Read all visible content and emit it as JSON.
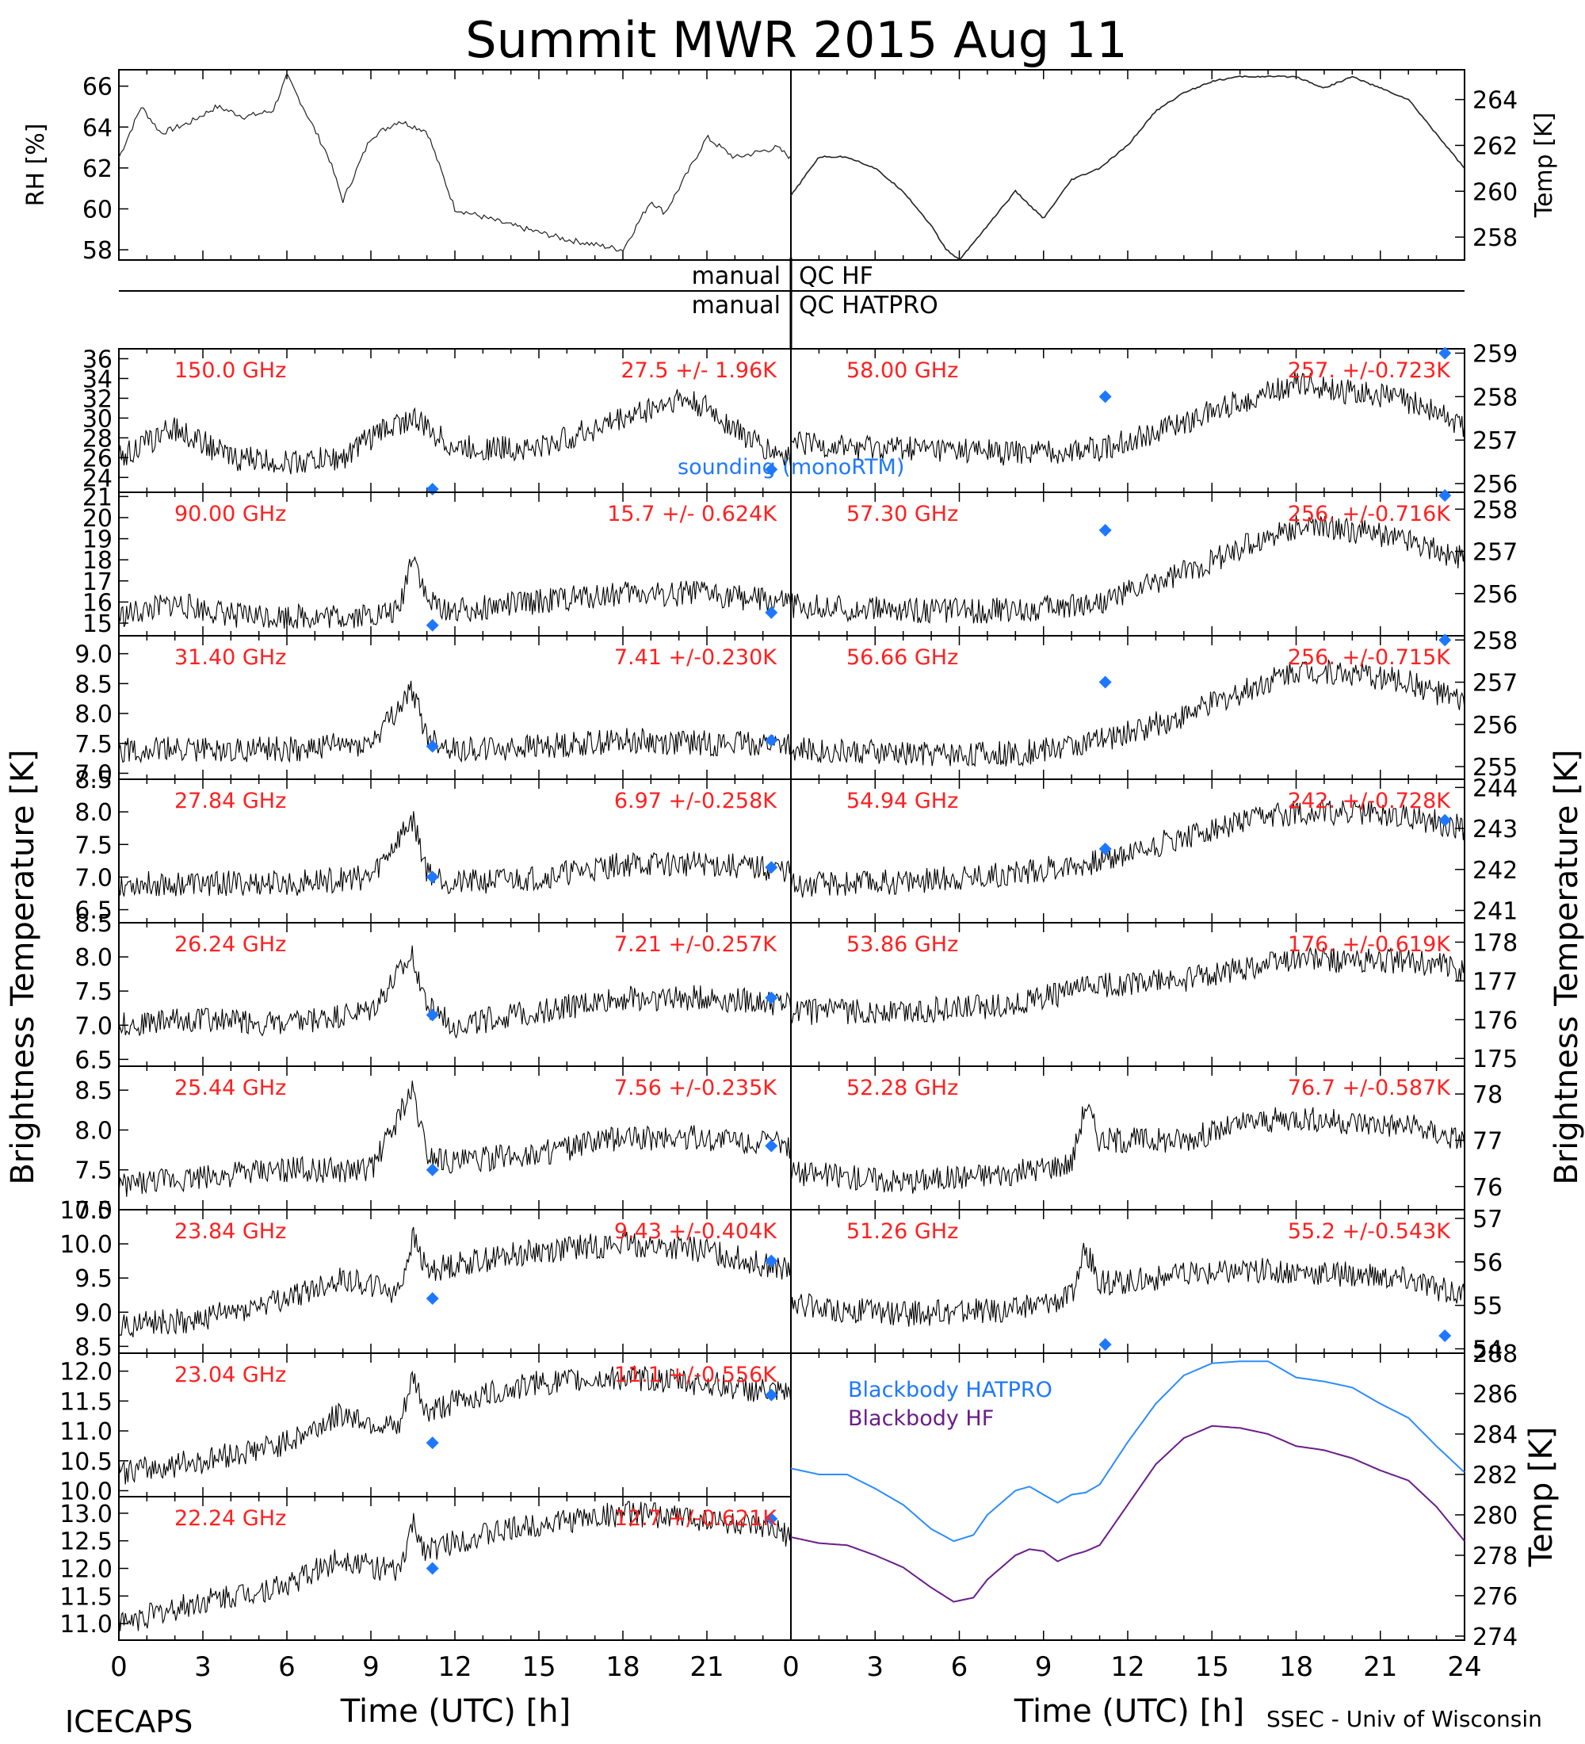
{
  "title": "Summit MWR 2015 Aug 11",
  "qc_labels": {
    "hf_left": "manual",
    "hf_right": "QC HF",
    "hatpro_left": "manual",
    "hatpro_right": "QC HATPRO"
  },
  "left_axis_label": "Brightness Temperature [K]",
  "right_axis_label": "Brightness Temperature [K]",
  "xlabel": "Time (UTC) [h]",
  "x_ticks": [
    "0",
    "3",
    "6",
    "9",
    "12",
    "15",
    "18",
    "21",
    "24"
  ],
  "footer": {
    "left": "ICECAPS",
    "right": "SSEC - Univ of Wisconsin"
  },
  "legend": {
    "sounding": "sounding (monoRTM)",
    "bb_hatpro": "Blackbody HATPRO",
    "bb_hf": "Blackbody HF"
  },
  "colors": {
    "stat": "#ff2020",
    "sounding": "#1e78ff",
    "bb_hatpro": "#2c8cff",
    "bb_hf": "#6a1e8a"
  },
  "chart_data": [
    {
      "type": "line",
      "panel": "rh",
      "ylabel": "RH [%]",
      "ylim": [
        57.5,
        66.8
      ],
      "yticks": [
        58,
        60,
        62,
        64,
        66
      ],
      "x": [
        0,
        0.8,
        1.5,
        2.5,
        3.5,
        4.5,
        5.5,
        6,
        6.5,
        7.5,
        8,
        9,
        10,
        11,
        12,
        14,
        16,
        18,
        19,
        19.5,
        20,
        21,
        22,
        23.5,
        24
      ],
      "y": [
        62.5,
        65,
        63.7,
        64.2,
        65,
        64.5,
        64.8,
        66.5,
        65.2,
        62.5,
        60.4,
        63.5,
        64.3,
        63.8,
        60,
        59.2,
        58.5,
        58,
        60.4,
        59.8,
        61,
        63.5,
        62.5,
        63,
        62.5
      ]
    },
    {
      "type": "line",
      "panel": "temp",
      "ylabel": "Temp [K]",
      "ylim": [
        257,
        265.3
      ],
      "yticks": [
        258,
        260,
        262,
        264
      ],
      "x": [
        0,
        1,
        2,
        3,
        4,
        5,
        5.5,
        6,
        7,
        8,
        9,
        10,
        11,
        12,
        13,
        14,
        15,
        16,
        17,
        18,
        19,
        20,
        21,
        22,
        23,
        24
      ],
      "y": [
        259.8,
        261.5,
        261.5,
        261,
        260,
        258.5,
        257.5,
        257,
        258.5,
        260,
        258.8,
        260.5,
        261,
        262,
        263.5,
        264.3,
        264.8,
        265,
        265,
        265,
        264.5,
        265,
        264.5,
        264,
        262.5,
        261
      ]
    },
    {
      "type": "scatter",
      "panel": "L1",
      "freq": "150.0 GHz",
      "stat": "27.5 +/- 1.96K",
      "ylim": [
        22.5,
        37
      ],
      "yticks": [
        22,
        24,
        26,
        28,
        30,
        32,
        34,
        36
      ],
      "sounding_x": [
        11.2,
        23.3
      ],
      "sounding_y": [
        22.5,
        24.8
      ],
      "sounding_label": true,
      "x": [
        0,
        2,
        4,
        6,
        8,
        9.5,
        10.5,
        12,
        15,
        18,
        20,
        21,
        22,
        23,
        24
      ],
      "y": [
        26,
        29,
        26,
        25.5,
        26,
        29,
        30,
        27,
        27,
        30,
        32,
        31,
        29,
        27,
        26
      ]
    },
    {
      "type": "scatter",
      "panel": "L2",
      "freq": "90.00 GHz",
      "stat": "15.7 +/- 0.624K",
      "ylim": [
        14.4,
        21.2
      ],
      "yticks": [
        15,
        16,
        17,
        18,
        19,
        20,
        21
      ],
      "sounding_x": [
        11.2,
        23.3
      ],
      "sounding_y": [
        14.9,
        15.5
      ],
      "x": [
        0,
        2,
        4,
        6,
        8,
        10,
        10.5,
        11,
        12,
        15,
        18,
        21,
        24
      ],
      "y": [
        15.3,
        15.9,
        15.4,
        15.3,
        15.3,
        15.5,
        18.5,
        16,
        15.6,
        16,
        16.4,
        16.4,
        15.9
      ]
    },
    {
      "type": "scatter",
      "panel": "L3",
      "freq": "31.40 GHz",
      "stat": "7.41 +/-0.230K",
      "ylim": [
        6.9,
        9.3
      ],
      "yticks": [
        7.0,
        7.5,
        8.0,
        8.5,
        9.0
      ],
      "sounding_x": [
        11.2,
        23.3
      ],
      "sounding_y": [
        7.45,
        7.55
      ],
      "x": [
        0,
        3,
        6,
        9,
        10.5,
        11,
        12,
        15,
        18,
        21,
        24
      ],
      "y": [
        7.4,
        7.4,
        7.4,
        7.5,
        8.4,
        7.6,
        7.4,
        7.45,
        7.55,
        7.5,
        7.5
      ]
    },
    {
      "type": "scatter",
      "panel": "L4",
      "freq": "27.84 GHz",
      "stat": "6.97 +/-0.258K",
      "ylim": [
        6.3,
        8.5
      ],
      "yticks": [
        6.5,
        7.0,
        7.5,
        8.0,
        8.5
      ],
      "sounding_x": [
        11.2,
        23.3
      ],
      "sounding_y": [
        7.0,
        7.15
      ],
      "x": [
        0,
        3,
        6,
        9,
        10.5,
        11,
        12,
        15,
        18,
        21,
        24
      ],
      "y": [
        6.9,
        6.9,
        6.9,
        7.0,
        7.9,
        7.1,
        6.9,
        7.0,
        7.2,
        7.2,
        7.1
      ]
    },
    {
      "type": "scatter",
      "panel": "L5",
      "freq": "26.24 GHz",
      "stat": "7.21 +/-0.257K",
      "ylim": [
        6.4,
        8.5
      ],
      "yticks": [
        6.5,
        7.0,
        7.5,
        8.0,
        8.5
      ],
      "sounding_x": [
        11.2,
        23.3
      ],
      "sounding_y": [
        7.15,
        7.4
      ],
      "x": [
        0,
        3,
        6,
        9,
        10.5,
        11,
        12,
        15,
        18,
        21,
        24
      ],
      "y": [
        7.0,
        7.1,
        7.0,
        7.2,
        8.0,
        7.3,
        7.0,
        7.2,
        7.4,
        7.4,
        7.3
      ]
    },
    {
      "type": "scatter",
      "panel": "L6",
      "freq": "25.44 GHz",
      "stat": "7.56 +/-0.235K",
      "ylim": [
        7.0,
        8.8
      ],
      "yticks": [
        7.0,
        7.5,
        8.0,
        8.5
      ],
      "sounding_x": [
        11.2,
        23.3
      ],
      "sounding_y": [
        7.5,
        7.8
      ],
      "x": [
        0,
        3,
        6,
        9,
        10.5,
        11,
        12,
        15,
        18,
        21,
        24
      ],
      "y": [
        7.3,
        7.4,
        7.5,
        7.5,
        8.5,
        7.7,
        7.6,
        7.7,
        7.9,
        7.9,
        7.8
      ]
    },
    {
      "type": "scatter",
      "panel": "L7",
      "freq": "23.84 GHz",
      "stat": "9.43 +/-0.404K",
      "ylim": [
        8.4,
        10.5
      ],
      "yticks": [
        8.5,
        9.0,
        9.5,
        10.0,
        10.5
      ],
      "sounding_x": [
        11.2,
        23.3
      ],
      "sounding_y": [
        9.2,
        9.75
      ],
      "x": [
        0,
        3,
        6,
        8,
        10,
        10.5,
        11,
        12,
        15,
        18,
        21,
        24
      ],
      "y": [
        8.8,
        8.9,
        9.2,
        9.5,
        9.3,
        10.1,
        9.6,
        9.7,
        9.9,
        10.0,
        9.9,
        9.6
      ]
    },
    {
      "type": "scatter",
      "panel": "L8",
      "freq": "23.04 GHz",
      "stat": "11.1 +/-0.556K",
      "ylim": [
        9.9,
        12.3
      ],
      "yticks": [
        10.0,
        10.5,
        11.0,
        11.5,
        12.0
      ],
      "sounding_x": [
        11.2,
        23.3
      ],
      "sounding_y": [
        10.8,
        11.6
      ],
      "x": [
        0,
        3,
        6,
        8,
        10,
        10.5,
        11,
        12,
        15,
        18,
        21,
        24
      ],
      "y": [
        10.3,
        10.5,
        10.8,
        11.3,
        11.0,
        11.9,
        11.3,
        11.5,
        11.8,
        11.9,
        11.8,
        11.6
      ]
    },
    {
      "type": "scatter",
      "panel": "L9",
      "freq": "22.24 GHz",
      "stat": "12.7 +/-0.621K",
      "ylim": [
        10.7,
        13.3
      ],
      "yticks": [
        11.0,
        11.5,
        12.0,
        12.5,
        13.0
      ],
      "sounding_x": [
        11.2,
        23.3
      ],
      "sounding_y": [
        12.0,
        12.9
      ],
      "x": [
        0,
        3,
        6,
        8,
        10,
        10.5,
        11,
        12,
        15,
        18,
        21,
        24
      ],
      "y": [
        11.0,
        11.4,
        11.7,
        12.2,
        11.9,
        12.8,
        12.3,
        12.5,
        12.8,
        13.0,
        12.9,
        12.6
      ]
    },
    {
      "type": "scatter",
      "panel": "R1",
      "freq": "58.00 GHz",
      "stat": "257. +/-0.723K",
      "ylim": [
        255.8,
        259.1
      ],
      "yticks": [
        256,
        257,
        258,
        259
      ],
      "sounding_x": [
        11.2,
        23.3
      ],
      "sounding_y": [
        258,
        259
      ],
      "x": [
        0,
        4,
        8,
        11,
        14,
        16.5,
        18,
        20,
        22,
        24
      ],
      "y": [
        256.9,
        256.8,
        256.7,
        256.8,
        257.4,
        258,
        258.3,
        258.1,
        257.9,
        257.3
      ]
    },
    {
      "type": "scatter",
      "panel": "R2",
      "freq": "57.30 GHz",
      "stat": "256. +/-0.716K",
      "ylim": [
        255,
        258.4
      ],
      "yticks": [
        256,
        257,
        258
      ],
      "sounding_x": [
        11.2,
        23.3
      ],
      "sounding_y": [
        257.5,
        258.5
      ],
      "x": [
        0,
        4,
        8,
        11,
        14,
        16.5,
        18,
        20,
        22,
        24
      ],
      "y": [
        255.7,
        255.6,
        255.6,
        255.8,
        256.5,
        257.2,
        257.6,
        257.5,
        257.3,
        256.8
      ]
    },
    {
      "type": "scatter",
      "panel": "R3",
      "freq": "56.66 GHz",
      "stat": "256. +/-0.715K",
      "ylim": [
        254.7,
        258.1
      ],
      "yticks": [
        255,
        256,
        257,
        258
      ],
      "sounding_x": [
        11.2,
        23.3
      ],
      "sounding_y": [
        257,
        258
      ],
      "x": [
        0,
        4,
        8,
        11,
        14,
        16.5,
        18,
        20,
        22,
        24
      ],
      "y": [
        255.4,
        255.3,
        255.3,
        255.6,
        256.2,
        256.9,
        257.3,
        257.2,
        257,
        256.5
      ]
    },
    {
      "type": "scatter",
      "panel": "R4",
      "freq": "54.94 GHz",
      "stat": "242. +/-0.728K",
      "ylim": [
        240.7,
        244.2
      ],
      "yticks": [
        241,
        242,
        243,
        244
      ],
      "sounding_x": [
        11.2,
        23.3
      ],
      "sounding_y": [
        242.5,
        243.2
      ],
      "x": [
        0,
        4,
        8,
        11,
        14,
        16.5,
        18,
        20,
        22,
        24
      ],
      "y": [
        241.6,
        241.7,
        241.9,
        242.2,
        242.8,
        243.2,
        243.4,
        243.4,
        243.3,
        243
      ]
    },
    {
      "type": "scatter",
      "panel": "R5",
      "freq": "53.86 GHz",
      "stat": "176. +/-0.619K",
      "ylim": [
        174.8,
        178.5
      ],
      "yticks": [
        175,
        176,
        177,
        178
      ],
      "sounding_x": [],
      "sounding_y": [],
      "x": [
        0,
        4,
        8,
        11,
        14,
        16.5,
        18,
        20,
        22,
        24
      ],
      "y": [
        176.2,
        176.2,
        176.4,
        176.9,
        177,
        177.4,
        177.6,
        177.5,
        177.5,
        177.3
      ]
    },
    {
      "type": "scatter",
      "panel": "R6",
      "freq": "52.28 GHz",
      "stat": "76.7 +/-0.587K",
      "ylim": [
        75.5,
        78.6
      ],
      "yticks": [
        76,
        77,
        78
      ],
      "sounding_x": [],
      "sounding_y": [],
      "x": [
        0,
        4,
        8,
        10,
        10.5,
        11,
        14,
        16.5,
        18,
        20,
        22,
        24
      ],
      "y": [
        76.3,
        76.1,
        76.3,
        76.5,
        77.8,
        77,
        77,
        77.4,
        77.5,
        77.4,
        77.3,
        77
      ]
    },
    {
      "type": "scatter",
      "panel": "R7",
      "freq": "51.26 GHz",
      "stat": "55.2 +/-0.543K",
      "ylim": [
        53.9,
        57.2
      ],
      "yticks": [
        54,
        55,
        56,
        57
      ],
      "sounding_x": [
        11.2,
        23.3
      ],
      "sounding_y": [
        54.1,
        54.3
      ],
      "x": [
        0,
        4,
        8,
        10,
        10.5,
        11,
        14,
        16.5,
        18,
        20,
        22,
        24
      ],
      "y": [
        55,
        54.8,
        54.9,
        55.2,
        56.3,
        55.5,
        55.7,
        55.8,
        55.8,
        55.7,
        55.6,
        55.2
      ]
    },
    {
      "type": "line",
      "panel": "R8",
      "ylabel": "Temp [K]",
      "ylim": [
        273.8,
        288
      ],
      "yticks": [
        274,
        276,
        278,
        280,
        282,
        284,
        286,
        288
      ],
      "x": [
        0,
        1,
        2,
        3,
        4,
        5,
        5.8,
        6.5,
        7,
        8,
        8.5,
        9,
        9.5,
        10,
        10.5,
        11,
        12,
        13,
        14,
        15,
        16,
        17,
        18,
        19,
        20,
        21,
        22,
        23,
        24
      ],
      "series": [
        {
          "name": "Blackbody HATPRO",
          "y": [
            282.3,
            282.0,
            282.0,
            281.3,
            280.5,
            279.3,
            278.7,
            279.0,
            280.0,
            281.2,
            281.4,
            281.0,
            280.6,
            281.0,
            281.1,
            281.5,
            283.6,
            285.5,
            286.9,
            287.5,
            287.6,
            287.6,
            286.8,
            286.6,
            286.3,
            285.5,
            284.8,
            283.4,
            282.1
          ]
        },
        {
          "name": "Blackbody HF",
          "y": [
            278.9,
            278.6,
            278.5,
            278.0,
            277.4,
            276.4,
            275.7,
            275.9,
            276.8,
            278.0,
            278.3,
            278.2,
            277.7,
            278.0,
            278.2,
            278.5,
            280.5,
            282.5,
            283.8,
            284.4,
            284.3,
            284.0,
            283.4,
            283.2,
            282.8,
            282.2,
            281.7,
            280.4,
            278.7
          ]
        }
      ]
    }
  ]
}
